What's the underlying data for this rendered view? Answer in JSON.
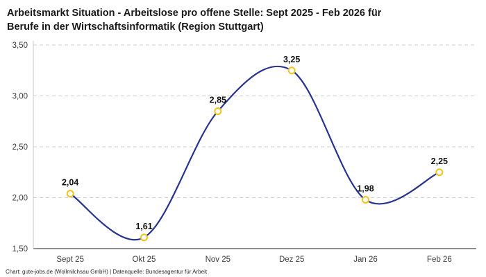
{
  "title": "Arbeitsmarkt Situation - Arbeitslose pro offene Stelle: Sept 2025 - Feb 2026 für\nBerufe in der Wirtschaftsinformatik (Region Stuttgart)",
  "footer": "Chart: gute-jobs.de (Wollmilchsau GmbH) | Datenquelle: Bundesagentur für Arbeit",
  "chart_data": {
    "type": "line",
    "title": "Arbeitsmarkt Situation - Arbeitslose pro offene Stelle: Sept 2025 - Feb 2026 für Berufe in der Wirtschaftsinformatik (Region Stuttgart)",
    "categories": [
      "Sept 25",
      "Okt 25",
      "Nov 25",
      "Dez 25",
      "Jan 26",
      "Feb 26"
    ],
    "values": [
      2.04,
      1.61,
      2.85,
      3.25,
      1.98,
      2.25
    ],
    "point_labels": [
      "2,04",
      "1,61",
      "2,85",
      "3,25",
      "1,98",
      "2,25"
    ],
    "yticks": [
      {
        "v": 1.5,
        "label": "1,50"
      },
      {
        "v": 2.0,
        "label": "2,00"
      },
      {
        "v": 2.5,
        "label": "2,50"
      },
      {
        "v": 3.0,
        "label": "3,00"
      },
      {
        "v": 3.5,
        "label": "3,50"
      }
    ],
    "ylim": [
      1.5,
      3.5
    ],
    "xlabel": "",
    "ylabel": "",
    "legend": "none",
    "grid": "dashed-horizontal",
    "line_color": "#27348f",
    "marker_fill": "#ffffff",
    "marker_stroke": "#f0c419",
    "grid_color": "#cccccc",
    "axis_bottom_color": "#4a4a4a",
    "axis_left_color": "#c9c9c9",
    "tick_label_color": "#3a3a3a",
    "label_color": "#111111"
  }
}
